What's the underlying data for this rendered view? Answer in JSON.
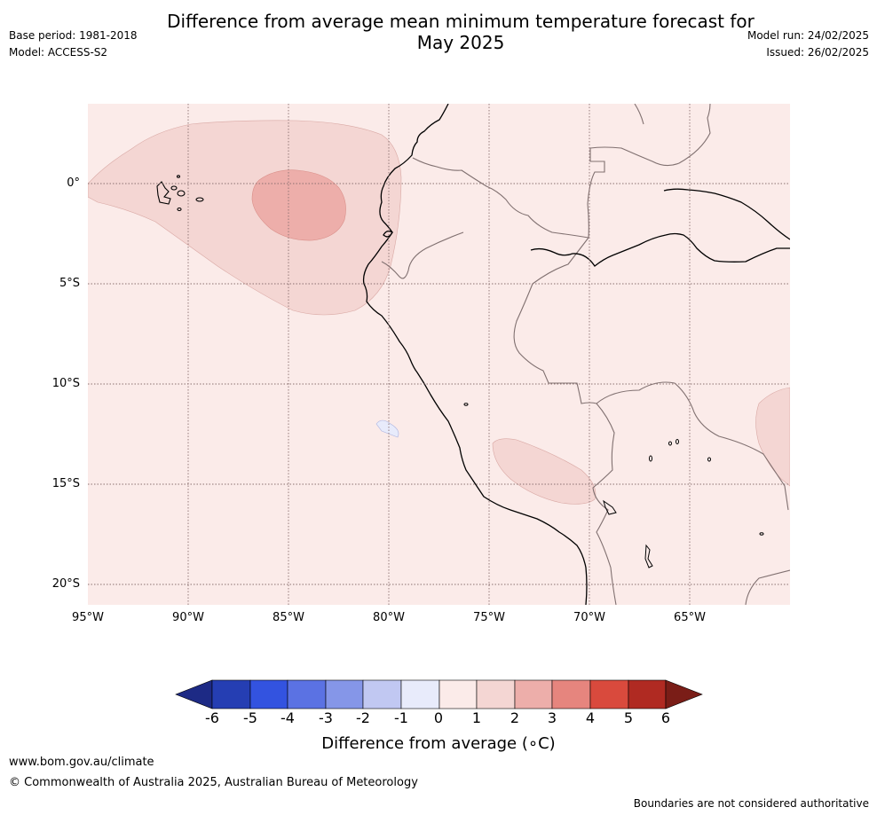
{
  "header": {
    "title_line1": "Difference from average mean minimum temperature forecast for",
    "title_line2": "May 2025",
    "base_period": "Base period: 1981-2018",
    "model": "Model: ACCESS-S2",
    "model_run": "Model run: 24/02/2025",
    "issued": "Issued: 26/02/2025"
  },
  "map": {
    "lat_labels": [
      "0°",
      "5°S",
      "10°S",
      "15°S",
      "20°S"
    ],
    "lon_labels": [
      "95°W",
      "90°W",
      "85°W",
      "80°W",
      "75°W",
      "70°W",
      "65°W"
    ],
    "background_color": "#fbebe9"
  },
  "colorbar": {
    "labels": [
      "-6",
      "-5",
      "-4",
      "-3",
      "-2",
      "-1",
      "0",
      "1",
      "2",
      "3",
      "4",
      "5",
      "6"
    ],
    "colors": [
      "#1d2a85",
      "#253eb3",
      "#3353e0",
      "#5b72e3",
      "#8596e8",
      "#c1c8f2",
      "#e8ebfb",
      "#fbebe9",
      "#f4d6d3",
      "#edaeaa",
      "#e6857e",
      "#d94a3d",
      "#b02a22",
      "#7a1d17"
    ],
    "title": "Difference from average (∘C)"
  },
  "footer": {
    "url": "www.bom.gov.au/climate",
    "copyright": "© Commonwealth of Australia 2025, Australian Bureau of Meteorology",
    "disclaimer": "Boundaries are not considered authoritative"
  }
}
